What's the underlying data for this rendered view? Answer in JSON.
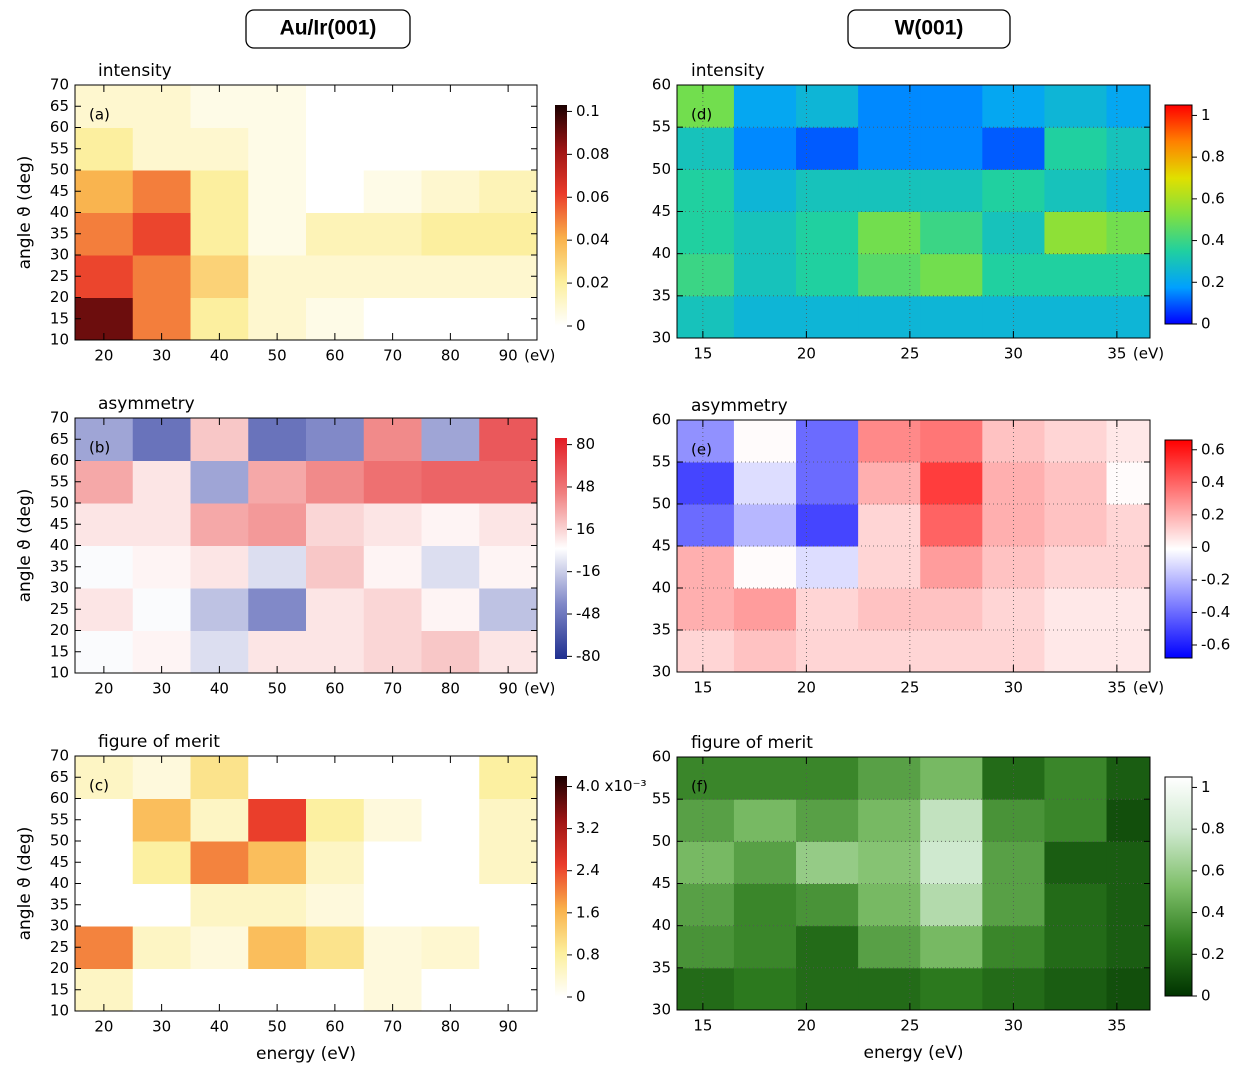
{
  "headers": [
    "Au/Ir(001)",
    "W(001)"
  ],
  "chart_data": [
    {
      "type": "heatmap",
      "title": "intensity",
      "panel_label": "(a)",
      "ylabel": "angle ϑ (deg)",
      "x_unit": "(eV)",
      "xlim": [
        15,
        95
      ],
      "ylim": [
        10,
        70
      ],
      "xticks": [
        20,
        30,
        40,
        50,
        60,
        70,
        80,
        90
      ],
      "yticks": [
        10,
        15,
        20,
        25,
        30,
        35,
        40,
        45,
        50,
        55,
        60,
        65,
        70
      ],
      "grid": false,
      "x": [
        20,
        30,
        40,
        50,
        60,
        70,
        80,
        90
      ],
      "y": [
        15,
        25,
        35,
        45,
        55,
        65
      ],
      "z": [
        [
          0.09,
          0.05,
          0.02,
          0.01,
          0.005,
          0,
          0,
          0
        ],
        [
          0.06,
          0.05,
          0.03,
          0.01,
          0.01,
          0.01,
          0.01,
          0.01
        ],
        [
          0.05,
          0.06,
          0.02,
          0.005,
          0.015,
          0.015,
          0.02,
          0.02
        ],
        [
          0.04,
          0.05,
          0.02,
          0.005,
          0,
          0.005,
          0.01,
          0.015
        ],
        [
          0.02,
          0.01,
          0.01,
          0.005,
          0,
          0,
          0,
          0
        ],
        [
          0.01,
          0.01,
          0.005,
          0.005,
          0,
          0,
          0,
          0
        ]
      ],
      "colorscale": [
        "#ffffff",
        "#fcef9c",
        "#f9b04a",
        "#ea3b2a",
        "#9c1414",
        "#1a0000"
      ],
      "zlim": [
        0,
        0.103
      ],
      "zticks": [
        0,
        0.02,
        0.04,
        0.06,
        0.08,
        0.1
      ]
    },
    {
      "type": "heatmap",
      "title": "asymmetry",
      "panel_label": "(b)",
      "ylabel": "angle ϑ (deg)",
      "x_unit": "(eV)",
      "xlim": [
        15,
        95
      ],
      "ylim": [
        10,
        70
      ],
      "xticks": [
        20,
        30,
        40,
        50,
        60,
        70,
        80,
        90
      ],
      "yticks": [
        10,
        15,
        20,
        25,
        30,
        35,
        40,
        45,
        50,
        55,
        60,
        65,
        70
      ],
      "grid": false,
      "x": [
        20,
        30,
        40,
        50,
        60,
        70,
        80,
        90
      ],
      "y": [
        15,
        25,
        35,
        45,
        55,
        65
      ],
      "z": [
        [
          0,
          5,
          -10,
          10,
          10,
          15,
          20,
          10
        ],
        [
          10,
          0,
          -20,
          -40,
          10,
          15,
          5,
          -20
        ],
        [
          0,
          5,
          10,
          -10,
          20,
          5,
          -10,
          5
        ],
        [
          10,
          10,
          30,
          35,
          15,
          10,
          5,
          10
        ],
        [
          30,
          10,
          -30,
          30,
          40,
          50,
          55,
          55
        ],
        [
          -30,
          -50,
          20,
          -50,
          -40,
          40,
          -30,
          60
        ]
      ],
      "colorscale": [
        "#1f2f8f",
        "#8088c8",
        "#ffffff",
        "#f08080",
        "#e21c24"
      ],
      "zlim": [
        -82,
        85
      ],
      "zticks": [
        -80,
        -48,
        -16,
        16,
        48,
        80
      ]
    },
    {
      "type": "heatmap",
      "title": "figure of merit",
      "panel_label": "(c)",
      "ylabel": "angle ϑ (deg)",
      "xlabel": "energy (eV)",
      "xlim": [
        15,
        95
      ],
      "ylim": [
        10,
        70
      ],
      "xticks": [
        20,
        30,
        40,
        50,
        60,
        70,
        80,
        90
      ],
      "yticks": [
        10,
        15,
        20,
        25,
        30,
        35,
        40,
        45,
        50,
        55,
        60,
        65,
        70
      ],
      "grid": false,
      "x": [
        20,
        30,
        40,
        50,
        60,
        70,
        80,
        90
      ],
      "y": [
        15,
        25,
        35,
        45,
        55,
        65
      ],
      "z": [
        [
          0.0005,
          0,
          0,
          0,
          0,
          0.0003,
          0,
          0
        ],
        [
          0.002,
          0.0005,
          0.0003,
          0.0015,
          0.001,
          0.0003,
          0.0004,
          0
        ],
        [
          0,
          0,
          0.0005,
          0.0005,
          0.0003,
          0,
          0,
          0
        ],
        [
          0,
          0.0008,
          0.002,
          0.0015,
          0.0005,
          0,
          0,
          0.0005
        ],
        [
          0,
          0.0015,
          0.0005,
          0.0025,
          0.0008,
          0.0003,
          0,
          0.0005
        ],
        [
          0.0005,
          0.0003,
          0.001,
          0,
          0,
          0,
          0,
          0.0008
        ]
      ],
      "colorscale": [
        "#ffffff",
        "#fcef9c",
        "#f9b04a",
        "#ea3b2a",
        "#9c1414",
        "#1a0000"
      ],
      "zlim": [
        0,
        0.0042
      ],
      "zticks": [
        0,
        {
          "value": 0.0008,
          "label": "0.8"
        },
        {
          "value": 0.0016,
          "label": "1.6"
        },
        {
          "value": 0.0024,
          "label": "2.4"
        },
        {
          "value": 0.0032,
          "label": "3.2"
        },
        {
          "value": 0.004,
          "label": "4.0 x10⁻³"
        }
      ]
    },
    {
      "type": "heatmap",
      "title": "intensity",
      "panel_label": "(d)",
      "x_unit": "(eV)",
      "xlim": [
        13.75,
        36.6
      ],
      "ylim": [
        30,
        60
      ],
      "xticks": [
        15,
        20,
        25,
        30,
        35
      ],
      "yticks": [
        30,
        35,
        40,
        45,
        50,
        55,
        60
      ],
      "grid": true,
      "x": [
        15,
        18,
        21,
        24,
        27,
        30,
        33,
        36
      ],
      "y": [
        32.5,
        37.5,
        42.5,
        47.5,
        52.5,
        57.5
      ],
      "z": [
        [
          0.3,
          0.25,
          0.25,
          0.25,
          0.25,
          0.25,
          0.25,
          0.25
        ],
        [
          0.4,
          0.3,
          0.35,
          0.45,
          0.5,
          0.35,
          0.35,
          0.35
        ],
        [
          0.35,
          0.3,
          0.35,
          0.5,
          0.4,
          0.3,
          0.55,
          0.5
        ],
        [
          0.35,
          0.25,
          0.3,
          0.3,
          0.3,
          0.35,
          0.3,
          0.25
        ],
        [
          0.3,
          0.15,
          0.1,
          0.15,
          0.15,
          0.1,
          0.35,
          0.3
        ],
        [
          0.5,
          0.2,
          0.25,
          0.15,
          0.15,
          0.2,
          0.25,
          0.2
        ]
      ],
      "colorscale": [
        "#0000ff",
        "#00a0ff",
        "#20d0a0",
        "#80e040",
        "#e0e000",
        "#ff8000",
        "#ff0000"
      ],
      "zlim": [
        0,
        1.05
      ],
      "zticks": [
        0,
        0.2,
        0.4,
        0.6,
        0.8,
        1
      ]
    },
    {
      "type": "heatmap",
      "title": "asymmetry",
      "panel_label": "(e)",
      "x_unit": "(eV)",
      "xlim": [
        13.75,
        36.6
      ],
      "ylim": [
        30,
        60
      ],
      "xticks": [
        15,
        20,
        25,
        30,
        35
      ],
      "yticks": [
        30,
        35,
        40,
        45,
        50,
        55,
        60
      ],
      "grid": true,
      "x": [
        15,
        18,
        21,
        24,
        27,
        30,
        33,
        36
      ],
      "y": [
        32.5,
        37.5,
        42.5,
        47.5,
        52.5,
        57.5
      ],
      "z": [
        [
          0.1,
          0.15,
          0.1,
          0.1,
          0.1,
          0.1,
          0.05,
          0.05
        ],
        [
          0.2,
          0.25,
          0.1,
          0.15,
          0.15,
          0.1,
          0.05,
          0.05
        ],
        [
          0.2,
          0,
          -0.1,
          0.1,
          0.25,
          0.15,
          0.1,
          0.1
        ],
        [
          -0.4,
          -0.2,
          -0.5,
          0.1,
          0.4,
          0.2,
          0.15,
          0.1
        ],
        [
          -0.5,
          -0.1,
          -0.4,
          0.2,
          0.5,
          0.2,
          0.15,
          0
        ],
        [
          -0.3,
          0,
          -0.4,
          0.3,
          0.35,
          0.15,
          0.1,
          0.05
        ]
      ],
      "colorscale": [
        "#0000ff",
        "#8080ff",
        "#ffffff",
        "#ff8080",
        "#ff0000"
      ],
      "zlim": [
        -0.68,
        0.66
      ],
      "zticks": [
        -0.6,
        -0.4,
        -0.2,
        0,
        0.2,
        0.4,
        0.6
      ]
    },
    {
      "type": "heatmap",
      "title": "figure of merit",
      "panel_label": "(f)",
      "xlabel": "energy (eV)",
      "xlim": [
        13.75,
        36.6
      ],
      "ylim": [
        30,
        60
      ],
      "xticks": [
        15,
        20,
        25,
        30,
        35
      ],
      "yticks": [
        30,
        35,
        40,
        45,
        50,
        55,
        60
      ],
      "grid": true,
      "x": [
        15,
        18,
        21,
        24,
        27,
        30,
        33,
        36
      ],
      "y": [
        32.5,
        37.5,
        42.5,
        47.5,
        52.5,
        57.5
      ],
      "z": [
        [
          0.2,
          0.25,
          0.2,
          0.2,
          0.25,
          0.2,
          0.15,
          0.1
        ],
        [
          0.35,
          0.3,
          0.2,
          0.4,
          0.5,
          0.3,
          0.2,
          0.15
        ],
        [
          0.4,
          0.3,
          0.35,
          0.5,
          0.7,
          0.4,
          0.2,
          0.15
        ],
        [
          0.5,
          0.4,
          0.6,
          0.55,
          0.8,
          0.4,
          0.15,
          0.15
        ],
        [
          0.4,
          0.5,
          0.4,
          0.5,
          0.75,
          0.35,
          0.3,
          0.1
        ],
        [
          0.3,
          0.3,
          0.3,
          0.4,
          0.5,
          0.2,
          0.3,
          0.15
        ]
      ],
      "colorscale": [
        "#003300",
        "#2e7d1f",
        "#7fbf6a",
        "#cde8cd",
        "#ffffff"
      ],
      "zlim": [
        0,
        1.05
      ],
      "zticks": [
        0,
        0.2,
        0.4,
        0.6,
        0.8,
        1
      ]
    }
  ]
}
